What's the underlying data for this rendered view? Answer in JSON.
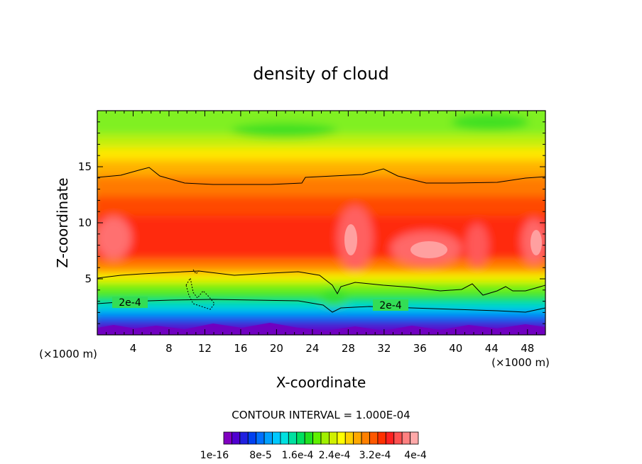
{
  "chart_data": {
    "type": "heatmap",
    "title": "density of cloud",
    "xlabel": "X-coordinate",
    "ylabel": "Z-coordinate",
    "x_unit": "(×1000 m)",
    "y_unit": "(×1000 m)",
    "xlim": [
      0,
      50
    ],
    "ylim": [
      0,
      20
    ],
    "x_ticks": [
      4,
      8,
      12,
      16,
      20,
      24,
      28,
      32,
      36,
      40,
      44,
      48
    ],
    "y_ticks": [
      5,
      10,
      15
    ],
    "contour_interval_text": "CONTOUR INTERVAL = 1.000E-04",
    "contour_labels": [
      "2e-4",
      "2e-4"
    ],
    "colorbar": {
      "min": 0,
      "max": 0.0004,
      "tick_labels": [
        "1e-16",
        "8e-5",
        "1.6e-4",
        "2.4e-4",
        "3.2e-4",
        "4e-4"
      ],
      "colors": [
        "#8000c0",
        "#5000d0",
        "#2020e0",
        "#0040f0",
        "#0070ff",
        "#00a0ff",
        "#00c8ff",
        "#00e0e0",
        "#00e0a0",
        "#00e060",
        "#20e020",
        "#60f000",
        "#a0f000",
        "#d0f000",
        "#ffff00",
        "#ffd000",
        "#ffa800",
        "#ff8000",
        "#ff5800",
        "#ff3000",
        "#ff2020",
        "#ff5050",
        "#ff8080",
        "#ffa8a8"
      ]
    }
  }
}
